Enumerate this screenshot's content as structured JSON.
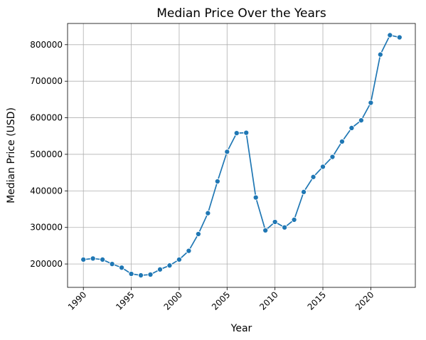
{
  "chart_data": {
    "type": "line",
    "title": "Median Price Over the Years",
    "xlabel": "Year",
    "ylabel": "Median Price (USD)",
    "xlim": [
      1988.35,
      2024.65
    ],
    "ylim": [
      136000,
      858000
    ],
    "xticks": [
      1990,
      1995,
      2000,
      2005,
      2010,
      2015,
      2020
    ],
    "yticks": [
      200000,
      300000,
      400000,
      500000,
      600000,
      700000,
      800000
    ],
    "xtick_rotation": 45,
    "grid": true,
    "line_color": "#1f77b4",
    "marker": "circle",
    "series": [
      {
        "x": [
          1990,
          1991,
          1992,
          1993,
          1994,
          1995,
          1996,
          1997,
          1998,
          1999,
          2000,
          2001,
          2002,
          2003,
          2004,
          2005,
          2006,
          2007,
          2008,
          2009,
          2010,
          2011,
          2012,
          2013,
          2014,
          2015,
          2016,
          2017,
          2018,
          2019,
          2020,
          2021,
          2022,
          2023
        ],
        "y": [
          212000,
          215000,
          212000,
          200000,
          190000,
          173000,
          169000,
          171000,
          185000,
          196000,
          212000,
          236000,
          282000,
          339000,
          426000,
          507000,
          558000,
          559000,
          382000,
          292000,
          315000,
          300000,
          321000,
          397000,
          438000,
          466000,
          493000,
          535000,
          572000,
          593000,
          641000,
          773000,
          826000,
          820000
        ]
      }
    ]
  }
}
